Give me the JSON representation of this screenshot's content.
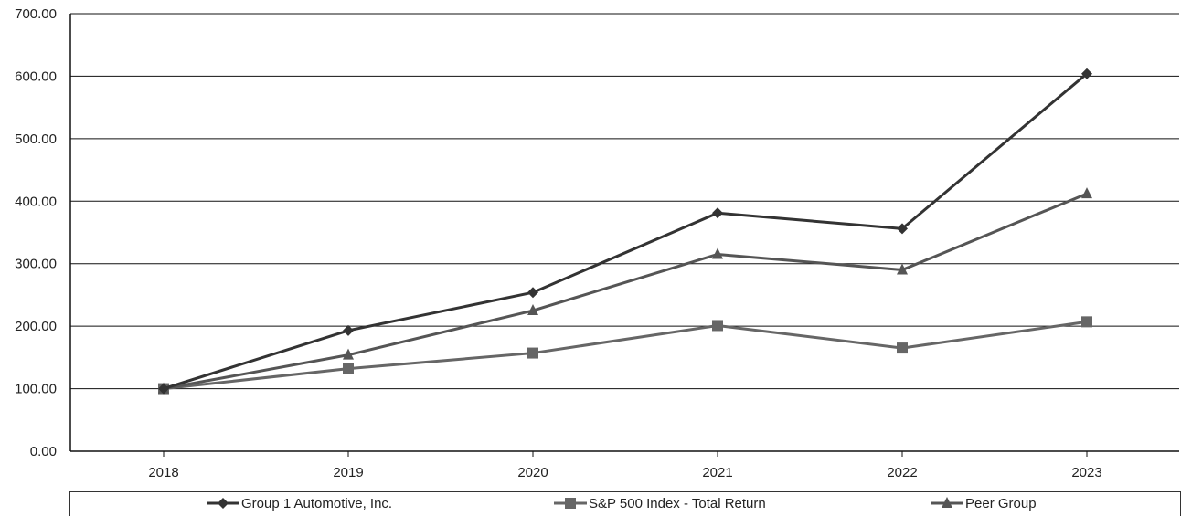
{
  "chart_data": {
    "type": "line",
    "title": "",
    "xlabel": "",
    "ylabel": "",
    "categories": [
      "2018",
      "2019",
      "2020",
      "2021",
      "2022",
      "2023"
    ],
    "ylim": [
      0,
      700
    ],
    "yticks": [
      "0.00",
      "100.00",
      "200.00",
      "300.00",
      "400.00",
      "500.00",
      "600.00",
      "700.00"
    ],
    "grid": true,
    "legend_position": "bottom",
    "series": [
      {
        "name": "Group 1 Automotive, Inc.",
        "marker": "diamond",
        "color": "#333333",
        "values": [
          100,
          193,
          254,
          381,
          356,
          604
        ]
      },
      {
        "name": "S&P 500 Index - Total Return",
        "marker": "square",
        "color": "#666666",
        "values": [
          100,
          132,
          157,
          201,
          165,
          207
        ]
      },
      {
        "name": "Peer Group",
        "marker": "triangle",
        "color": "#555555",
        "values": [
          100,
          154,
          225,
          315,
          290,
          412
        ]
      }
    ]
  }
}
